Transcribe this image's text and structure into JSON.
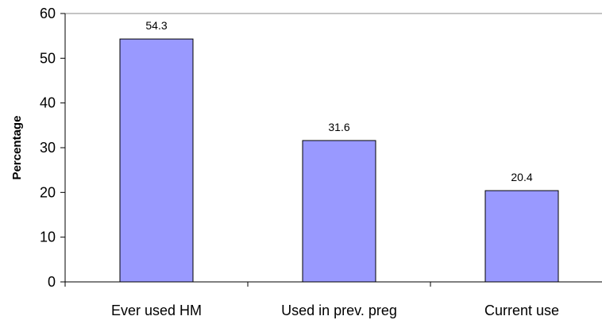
{
  "chart_data": {
    "type": "bar",
    "categories": [
      "Ever used HM",
      "Used in prev. preg",
      "Current use"
    ],
    "values": [
      54.3,
      31.6,
      20.4
    ],
    "data_labels": [
      "54.3",
      "31.6",
      "20.4"
    ],
    "ylabel": "Percentage",
    "ylim": [
      0,
      60
    ],
    "yticks": [
      "0",
      "10",
      "20",
      "30",
      "40",
      "50",
      "60"
    ],
    "grid": false,
    "bar_color": "#9999ff",
    "bar_stroke": "#000000"
  }
}
